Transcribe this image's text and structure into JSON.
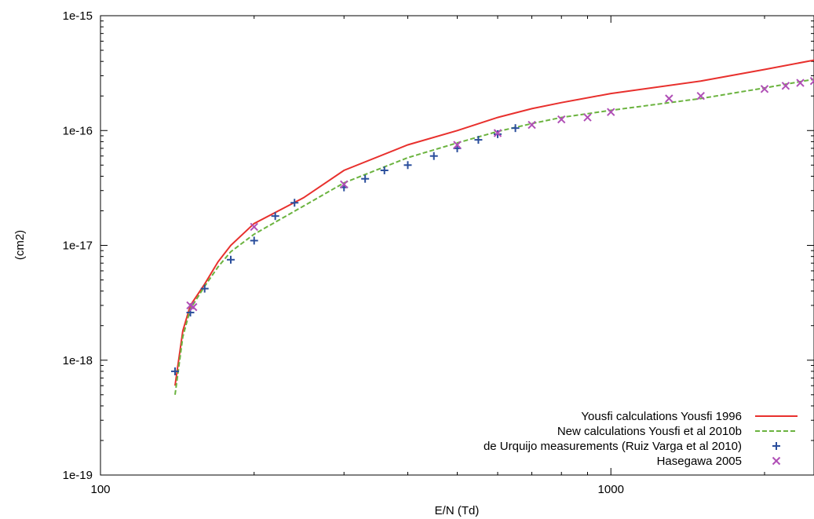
{
  "chart_data": {
    "type": "line",
    "title": "",
    "xlabel": "E/N (Td)",
    "ylabel": "(cm2)",
    "xscale": "log",
    "yscale": "log",
    "xlim": [
      100,
      2500
    ],
    "ylim": [
      1e-19,
      1e-15
    ],
    "x_ticks": [
      {
        "value": 100,
        "label": "100"
      },
      {
        "value": 1000,
        "label": "1000"
      }
    ],
    "y_ticks": [
      {
        "value": 1e-19,
        "label": "1e-19"
      },
      {
        "value": 1e-18,
        "label": "1e-18"
      },
      {
        "value": 1e-17,
        "label": "1e-17"
      },
      {
        "value": 1e-16,
        "label": "1e-16"
      },
      {
        "value": 1e-15,
        "label": "1e-15"
      }
    ],
    "legend_position": "bottom-right",
    "grid": false,
    "series": [
      {
        "name": "Yousfi calculations Yousfi 1996",
        "style": "solid-line",
        "color": "#e8302d",
        "points": [
          [
            140,
            6e-19
          ],
          [
            145,
            1.8e-18
          ],
          [
            150,
            3e-18
          ],
          [
            160,
            4.6e-18
          ],
          [
            170,
            7.2e-18
          ],
          [
            180,
            1e-17
          ],
          [
            200,
            1.55e-17
          ],
          [
            250,
            2.6e-17
          ],
          [
            300,
            4.5e-17
          ],
          [
            400,
            7.5e-17
          ],
          [
            500,
            1e-16
          ],
          [
            600,
            1.3e-16
          ],
          [
            700,
            1.55e-16
          ],
          [
            800,
            1.75e-16
          ],
          [
            1000,
            2.1e-16
          ],
          [
            1500,
            2.7e-16
          ],
          [
            2000,
            3.4e-16
          ],
          [
            2500,
            4.1e-16
          ]
        ]
      },
      {
        "name": "New calculations Yousfi et al 2010b",
        "style": "dashed-line",
        "color": "#6bb33f",
        "points": [
          [
            140,
            5e-19
          ],
          [
            145,
            1.6e-18
          ],
          [
            150,
            2.8e-18
          ],
          [
            160,
            4.4e-18
          ],
          [
            170,
            6.5e-18
          ],
          [
            180,
            8.8e-18
          ],
          [
            200,
            1.25e-17
          ],
          [
            250,
            2.2e-17
          ],
          [
            300,
            3.5e-17
          ],
          [
            400,
            5.8e-17
          ],
          [
            500,
            7.8e-17
          ],
          [
            600,
            9.8e-17
          ],
          [
            700,
            1.15e-16
          ],
          [
            800,
            1.3e-16
          ],
          [
            1000,
            1.5e-16
          ],
          [
            1500,
            1.9e-16
          ],
          [
            2000,
            2.35e-16
          ],
          [
            2500,
            2.8e-16
          ]
        ]
      },
      {
        "name": "de Urquijo measurements (Ruiz Varga et al 2010)",
        "style": "plus-marker",
        "color": "#2a4e9c",
        "points": [
          [
            140,
            8e-19
          ],
          [
            150,
            2.6e-18
          ],
          [
            160,
            4.2e-18
          ],
          [
            180,
            7.5e-18
          ],
          [
            200,
            1.1e-17
          ],
          [
            220,
            1.8e-17
          ],
          [
            240,
            2.35e-17
          ],
          [
            300,
            3.2e-17
          ],
          [
            330,
            3.8e-17
          ],
          [
            360,
            4.5e-17
          ],
          [
            400,
            5e-17
          ],
          [
            450,
            6e-17
          ],
          [
            500,
            7e-17
          ],
          [
            550,
            8.3e-17
          ],
          [
            600,
            9.3e-17
          ],
          [
            650,
            1.05e-16
          ]
        ]
      },
      {
        "name": "Hasegawa 2005",
        "style": "x-marker",
        "color": "#b04fb6",
        "points": [
          [
            150,
            3e-18
          ],
          [
            152,
            2.9e-18
          ],
          [
            200,
            1.45e-17
          ],
          [
            300,
            3.4e-17
          ],
          [
            500,
            7.5e-17
          ],
          [
            600,
            9.5e-17
          ],
          [
            700,
            1.12e-16
          ],
          [
            800,
            1.25e-16
          ],
          [
            900,
            1.3e-16
          ],
          [
            1000,
            1.45e-16
          ],
          [
            1300,
            1.9e-16
          ],
          [
            1500,
            2e-16
          ],
          [
            2000,
            2.3e-16
          ],
          [
            2200,
            2.45e-16
          ],
          [
            2350,
            2.6e-16
          ],
          [
            2500,
            2.7e-16
          ]
        ]
      }
    ]
  }
}
